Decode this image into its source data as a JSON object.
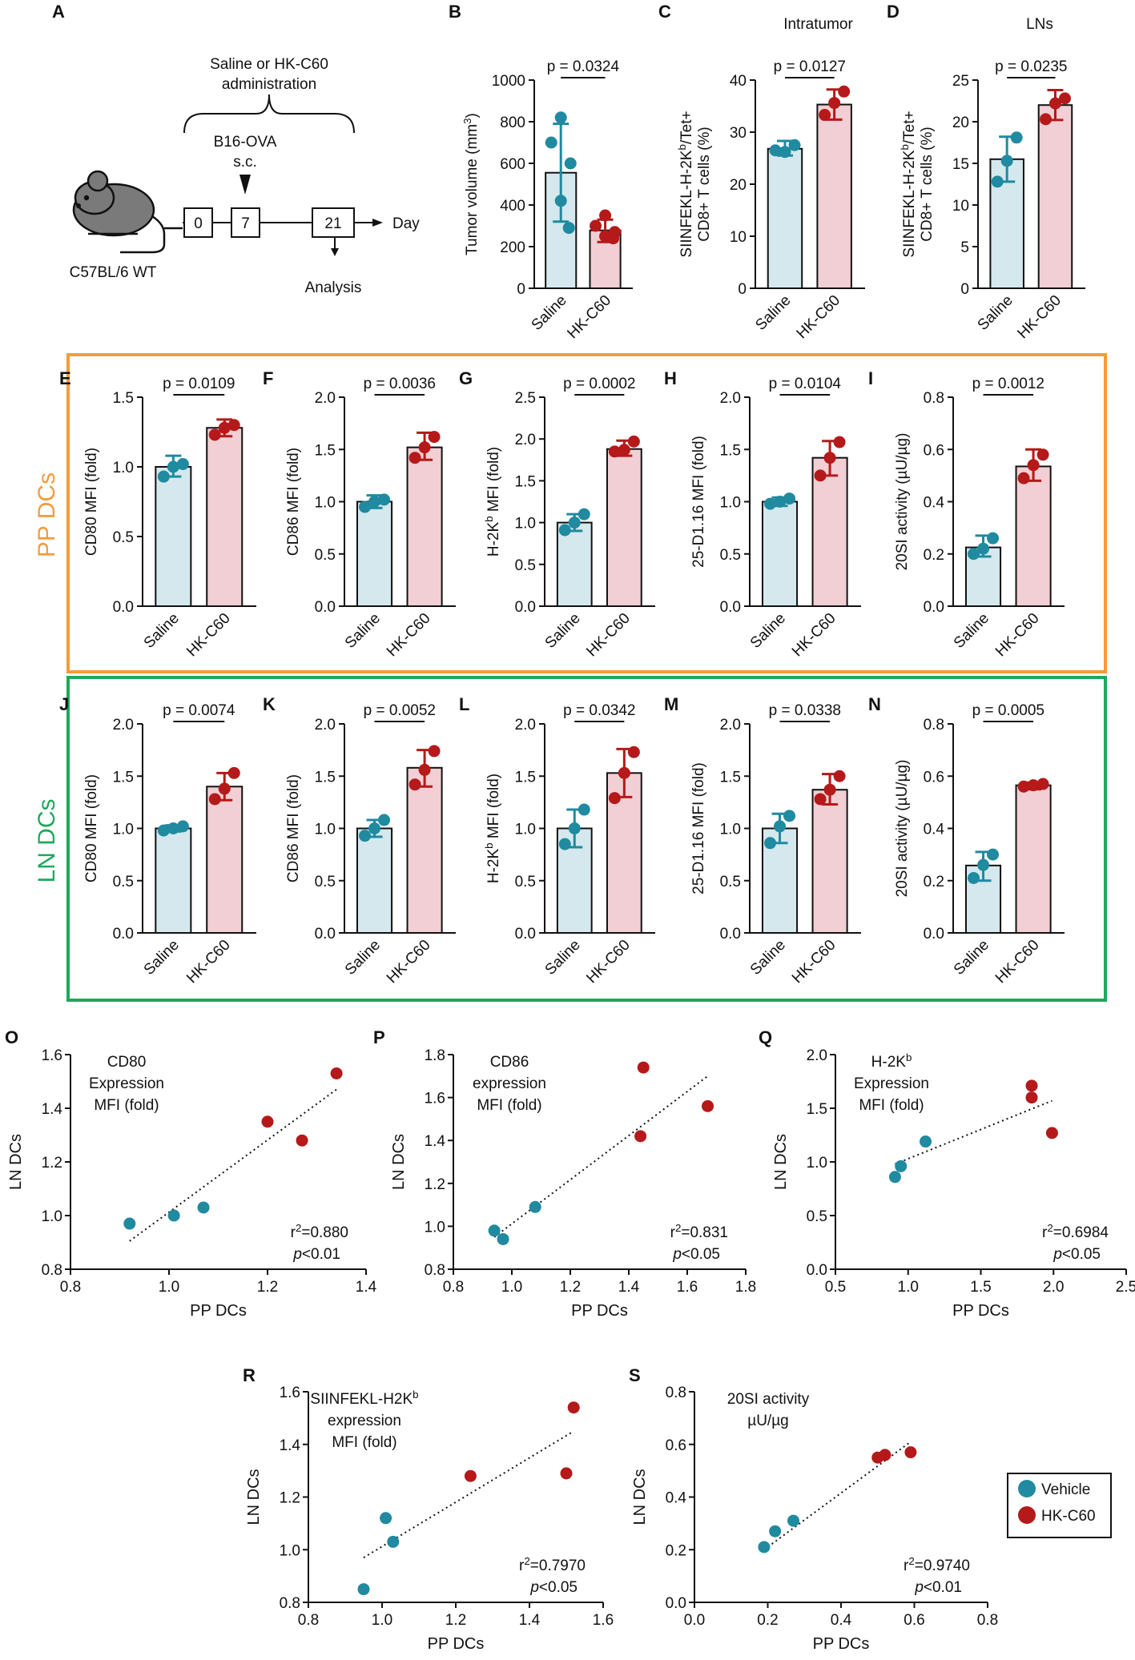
{
  "colors": {
    "saline_fill": "#d4e8ee",
    "hk_fill": "#f1cfd4",
    "saline_dot": "#1f8aa0",
    "hk_dot": "#b51919",
    "pp_box": "#f49b3c",
    "ln_box": "#1fa85c",
    "mouse": "#7a7a7a",
    "axis": "#111111"
  },
  "labels": {
    "pp_dcs": "PP DCs",
    "ln_dcs": "LN DCs"
  },
  "panel_a": {
    "letter": "A",
    "admin_line1": "Saline or HK-C60",
    "admin_line2": "administration",
    "tumor_line1": "B16-OVA",
    "tumor_line2": "s.c.",
    "days": [
      "0",
      "7",
      "21"
    ],
    "day_label": "Day",
    "mouse_label": "C57BL/6 WT",
    "analysis_label": "Analysis"
  },
  "legend": {
    "items": [
      {
        "label": "Vehicle",
        "group": "saline"
      },
      {
        "label": "HK-C60",
        "group": "hk"
      }
    ]
  },
  "chart_data": [
    {
      "id": "B",
      "type": "bar",
      "categories": [
        "Saline",
        "HK-C60"
      ],
      "ylabel": "Tumor volume (mm",
      "ylabel_sup": "3",
      "ylabel_end": ")",
      "ylim": [
        0,
        1000
      ],
      "ticks": [
        "0",
        "200",
        "400",
        "600",
        "800",
        "1000"
      ],
      "means": [
        555,
        278
      ],
      "err": [
        [
          320,
          790
        ],
        [
          222,
          330
        ]
      ],
      "points": [
        [
          820,
          700,
          600,
          420,
          290
        ],
        [
          350,
          300,
          270,
          250,
          240
        ]
      ],
      "pvalue": "p = 0.0324"
    },
    {
      "id": "C",
      "type": "bar",
      "title": "Intratumor",
      "categories": [
        "Saline",
        "HK-C60"
      ],
      "ylabel": "SIINFEKL-H-2K^b/Tet+",
      "ylabel2": "CD8+ T cells (%)",
      "ylim": [
        0,
        40
      ],
      "ticks": [
        "0",
        "10",
        "20",
        "30",
        "40"
      ],
      "means": [
        26.8,
        35.3
      ],
      "err": [
        [
          25.5,
          28.3
        ],
        [
          32.4,
          38.2
        ]
      ],
      "points": [
        [
          26.5,
          26.2,
          27.5
        ],
        [
          33.3,
          35.6,
          37.8
        ]
      ],
      "pvalue": "p = 0.0127"
    },
    {
      "id": "D",
      "type": "bar",
      "title": "LNs",
      "categories": [
        "Saline",
        "HK-C60"
      ],
      "ylabel": "SIINFEKL-H-2K^b/Tet+",
      "ylabel2": "CD8+ T cells (%)",
      "ylim": [
        0,
        25
      ],
      "ticks": [
        "0",
        "5",
        "10",
        "15",
        "20",
        "25"
      ],
      "means": [
        15.5,
        22.0
      ],
      "err": [
        [
          12.8,
          18.2
        ],
        [
          20.2,
          23.8
        ]
      ],
      "points": [
        [
          12.8,
          15.3,
          18.1
        ],
        [
          20.3,
          22.2,
          22.8
        ]
      ],
      "pvalue": "p = 0.0235"
    },
    {
      "id": "E",
      "type": "bar",
      "categories": [
        "Saline",
        "HK-C60"
      ],
      "ylabel": "CD80 MFI (fold)",
      "ylim": [
        0,
        1.5
      ],
      "ticks": [
        "0.0",
        "0.5",
        "1.0",
        "1.5"
      ],
      "means": [
        1.0,
        1.28
      ],
      "err": [
        [
          0.93,
          1.08
        ],
        [
          1.22,
          1.34
        ]
      ],
      "points": [
        [
          0.93,
          1.0,
          1.02
        ],
        [
          1.23,
          1.28,
          1.3
        ]
      ],
      "pvalue": "p = 0.0109"
    },
    {
      "id": "F",
      "type": "bar",
      "categories": [
        "Saline",
        "HK-C60"
      ],
      "ylabel": "CD86 MFI (fold)",
      "ylim": [
        0,
        2.0
      ],
      "ticks": [
        "0.0",
        "0.5",
        "1.0",
        "1.5",
        "2.0"
      ],
      "means": [
        1.0,
        1.52
      ],
      "err": [
        [
          0.94,
          1.06
        ],
        [
          1.4,
          1.66
        ]
      ],
      "points": [
        [
          0.95,
          1.0,
          1.02
        ],
        [
          1.42,
          1.52,
          1.62
        ]
      ],
      "pvalue": "p = 0.0036"
    },
    {
      "id": "G",
      "type": "bar",
      "categories": [
        "Saline",
        "HK-C60"
      ],
      "ylabel": "H-2K^b MFI (fold)",
      "ylim": [
        0,
        2.5
      ],
      "ticks": [
        "0.0",
        "0.5",
        "1.0",
        "1.5",
        "2.0",
        "2.5"
      ],
      "means": [
        1.0,
        1.88
      ],
      "err": [
        [
          0.9,
          1.1
        ],
        [
          1.8,
          1.98
        ]
      ],
      "points": [
        [
          0.91,
          1.0,
          1.1
        ],
        [
          1.85,
          1.87,
          1.97
        ]
      ],
      "pvalue": "p = 0.0002"
    },
    {
      "id": "H",
      "type": "bar",
      "categories": [
        "Saline",
        "HK-C60"
      ],
      "ylabel": "25-D1.16 MFI (fold)",
      "ylim": [
        0,
        2.0
      ],
      "ticks": [
        "0.0",
        "0.5",
        "1.0",
        "1.5",
        "2.0"
      ],
      "means": [
        1.0,
        1.42
      ],
      "err": [
        [
          0.96,
          1.04
        ],
        [
          1.25,
          1.58
        ]
      ],
      "points": [
        [
          0.98,
          1.0,
          1.03
        ],
        [
          1.25,
          1.42,
          1.57
        ]
      ],
      "pvalue": "p = 0.0104"
    },
    {
      "id": "I",
      "type": "bar",
      "categories": [
        "Saline",
        "HK-C60"
      ],
      "ylabel": "20SI activity (µU/µg)",
      "ylim": [
        0,
        0.8
      ],
      "ticks": [
        "0.0",
        "0.2",
        "0.4",
        "0.6",
        "0.8"
      ],
      "means": [
        0.225,
        0.535
      ],
      "err": [
        [
          0.19,
          0.27
        ],
        [
          0.48,
          0.6
        ]
      ],
      "points": [
        [
          0.2,
          0.22,
          0.26
        ],
        [
          0.49,
          0.54,
          0.58
        ]
      ],
      "pvalue": "p = 0.0012"
    },
    {
      "id": "J",
      "type": "bar",
      "categories": [
        "Saline",
        "HK-C60"
      ],
      "ylabel": "CD80 MFI (fold)",
      "ylim": [
        0,
        2.0
      ],
      "ticks": [
        "0.0",
        "0.5",
        "1.0",
        "1.5",
        "2.0"
      ],
      "means": [
        1.0,
        1.4
      ],
      "err": [
        [
          0.97,
          1.03
        ],
        [
          1.27,
          1.53
        ]
      ],
      "points": [
        [
          0.98,
          1.0,
          1.02
        ],
        [
          1.28,
          1.38,
          1.53
        ]
      ],
      "pvalue": "p = 0.0074"
    },
    {
      "id": "K",
      "type": "bar",
      "categories": [
        "Saline",
        "HK-C60"
      ],
      "ylabel": "CD86 MFI (fold)",
      "ylim": [
        0,
        2.0
      ],
      "ticks": [
        "0.0",
        "0.5",
        "1.0",
        "1.5",
        "2.0"
      ],
      "means": [
        1.0,
        1.58
      ],
      "err": [
        [
          0.92,
          1.08
        ],
        [
          1.4,
          1.75
        ]
      ],
      "points": [
        [
          0.93,
          1.0,
          1.08
        ],
        [
          1.42,
          1.56,
          1.74
        ]
      ],
      "pvalue": "p = 0.0052"
    },
    {
      "id": "L",
      "type": "bar",
      "categories": [
        "Saline",
        "HK-C60"
      ],
      "ylabel": "H-2K^b MFI (fold)",
      "ylim": [
        0,
        2.0
      ],
      "ticks": [
        "0.0",
        "0.5",
        "1.0",
        "1.5",
        "2.0"
      ],
      "means": [
        1.0,
        1.53
      ],
      "err": [
        [
          0.82,
          1.18
        ],
        [
          1.3,
          1.76
        ]
      ],
      "points": [
        [
          0.85,
          1.0,
          1.18
        ],
        [
          1.29,
          1.53,
          1.73
        ]
      ],
      "pvalue": "p = 0.0342"
    },
    {
      "id": "M",
      "type": "bar",
      "categories": [
        "Saline",
        "HK-C60"
      ],
      "ylabel": "25-D1.16 MFI (fold)",
      "ylim": [
        0,
        2.0
      ],
      "ticks": [
        "0.0",
        "0.5",
        "1.0",
        "1.5",
        "2.0"
      ],
      "means": [
        1.0,
        1.37
      ],
      "err": [
        [
          0.86,
          1.14
        ],
        [
          1.23,
          1.52
        ]
      ],
      "points": [
        [
          0.86,
          1.02,
          1.12
        ],
        [
          1.28,
          1.37,
          1.5
        ]
      ],
      "pvalue": "p = 0.0338"
    },
    {
      "id": "N",
      "type": "bar",
      "categories": [
        "Saline",
        "HK-C60"
      ],
      "ylabel": "20SI activity (µU/µg)",
      "ylim": [
        0,
        0.8
      ],
      "ticks": [
        "0.0",
        "0.2",
        "0.4",
        "0.6",
        "0.8"
      ],
      "means": [
        0.258,
        0.565
      ],
      "err": [
        [
          0.2,
          0.31
        ],
        [
          0.55,
          0.575
        ]
      ],
      "points": [
        [
          0.21,
          0.26,
          0.3
        ],
        [
          0.56,
          0.565,
          0.57
        ]
      ],
      "pvalue": "p = 0.0005"
    },
    {
      "id": "O",
      "type": "scatter",
      "xlabel": "PP DCs",
      "ylabel": "LN DCs",
      "xlim": [
        0.8,
        1.4
      ],
      "ylim": [
        0.8,
        1.6
      ],
      "xticks": [
        "0.8",
        "1.0",
        "1.2",
        "1.4"
      ],
      "yticks": [
        "0.8",
        "1.0",
        "1.2",
        "1.4",
        "1.6"
      ],
      "text": [
        "CD80",
        "Expression",
        "MFI (fold)"
      ],
      "r2": "0.880",
      "p_text": "<0.01",
      "vehicle": [
        [
          0.92,
          0.97
        ],
        [
          1.01,
          1.0
        ],
        [
          1.07,
          1.03
        ]
      ],
      "hk": [
        [
          1.2,
          1.35
        ],
        [
          1.27,
          1.28
        ],
        [
          1.34,
          1.53
        ]
      ],
      "fit": [
        [
          0.92,
          0.905
        ],
        [
          1.34,
          1.47
        ]
      ]
    },
    {
      "id": "P",
      "type": "scatter",
      "xlabel": "PP DCs",
      "ylabel": "LN DCs",
      "xlim": [
        0.8,
        1.8
      ],
      "ylim": [
        0.8,
        1.8
      ],
      "xticks": [
        "0.8",
        "1.0",
        "1.2",
        "1.4",
        "1.6",
        "1.8"
      ],
      "yticks": [
        "0.8",
        "1.0",
        "1.2",
        "1.4",
        "1.6",
        "1.8"
      ],
      "text": [
        "CD86",
        "expression",
        "MFI (fold)"
      ],
      "r2": "0.831",
      "p_text": "<0.05",
      "vehicle": [
        [
          0.94,
          0.98
        ],
        [
          0.97,
          0.94
        ],
        [
          1.08,
          1.09
        ]
      ],
      "hk": [
        [
          1.44,
          1.42
        ],
        [
          1.45,
          1.74
        ],
        [
          1.67,
          1.56
        ]
      ],
      "fit": [
        [
          0.94,
          0.95
        ],
        [
          1.67,
          1.7
        ]
      ]
    },
    {
      "id": "Q",
      "type": "scatter",
      "xlabel": "PP DCs",
      "ylabel": "LN DCs",
      "xlim": [
        0.5,
        2.5
      ],
      "ylim": [
        0.0,
        2.0
      ],
      "xticks": [
        "0.5",
        "1.0",
        "1.5",
        "2.0",
        "2.5"
      ],
      "yticks": [
        "0.0",
        "0.5",
        "1.0",
        "1.5",
        "2.0"
      ],
      "text": [
        "H-2K^b",
        "Expression",
        "MFI (fold)"
      ],
      "r2": "0.6984",
      "p_text": "<0.05",
      "vehicle": [
        [
          0.91,
          0.86
        ],
        [
          0.95,
          0.96
        ],
        [
          1.12,
          1.19
        ]
      ],
      "hk": [
        [
          1.85,
          1.71
        ],
        [
          1.85,
          1.6
        ],
        [
          1.99,
          1.27
        ]
      ],
      "fit": [
        [
          0.91,
          0.98
        ],
        [
          1.99,
          1.57
        ]
      ]
    },
    {
      "id": "R",
      "type": "scatter",
      "xlabel": "PP DCs",
      "ylabel": "LN DCs",
      "xlim": [
        0.8,
        1.6
      ],
      "ylim": [
        0.8,
        1.6
      ],
      "xticks": [
        "0.8",
        "1.0",
        "1.2",
        "1.4",
        "1.6"
      ],
      "yticks": [
        "0.8",
        "1.0",
        "1.2",
        "1.4",
        "1.6"
      ],
      "text": [
        "SIINFEKL-H2K^b",
        "expression",
        "MFI (fold)"
      ],
      "r2": "0.7970",
      "p_text": "<0.05",
      "vehicle": [
        [
          0.95,
          0.85
        ],
        [
          1.01,
          1.12
        ],
        [
          1.03,
          1.03
        ]
      ],
      "hk": [
        [
          1.24,
          1.28
        ],
        [
          1.5,
          1.29
        ],
        [
          1.52,
          1.54
        ]
      ],
      "fit": [
        [
          0.95,
          0.97
        ],
        [
          1.52,
          1.45
        ]
      ]
    },
    {
      "id": "S",
      "type": "scatter",
      "xlabel": "PP DCs",
      "ylabel": "LN DCs",
      "xlim": [
        0.0,
        0.8
      ],
      "ylim": [
        0.0,
        0.8
      ],
      "xticks": [
        "0.0",
        "0.2",
        "0.4",
        "0.6",
        "0.8"
      ],
      "yticks": [
        "0.0",
        "0.2",
        "0.4",
        "0.6",
        "0.8"
      ],
      "text": [
        "20SI activity",
        "µU/µg"
      ],
      "r2": "0.9740",
      "p_text": "<0.01",
      "vehicle": [
        [
          0.19,
          0.21
        ],
        [
          0.22,
          0.27
        ],
        [
          0.27,
          0.31
        ]
      ],
      "hk": [
        [
          0.5,
          0.55
        ],
        [
          0.52,
          0.56
        ],
        [
          0.59,
          0.57
        ]
      ],
      "fit": [
        [
          0.19,
          0.2
        ],
        [
          0.59,
          0.61
        ]
      ]
    }
  ]
}
